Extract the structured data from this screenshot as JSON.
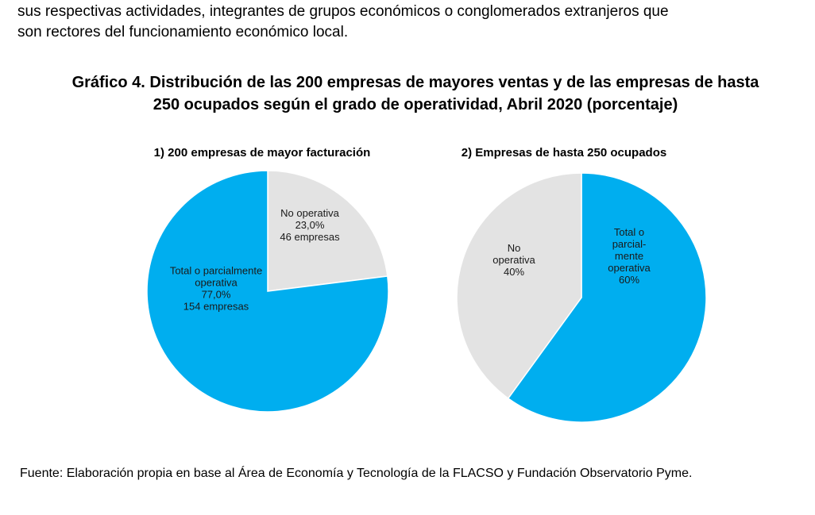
{
  "document": {
    "intro_lines": [
      "sus respectivas actividades, integrantes de grupos económicos o conglomerados extranjeros que",
      "son rectores del funcionamiento económico local."
    ],
    "figure_title_lines": [
      "Gráfico 4. Distribución de las 200 empresas de mayores ventas y de las empresas de hasta",
      "250 ocupados según el grado de operatividad, Abril 2020 (porcentaje)"
    ],
    "source": "Fuente: Elaboración propia en base al Área de Economía y Tecnología de la FLACSO y Fundación Observatorio Pyme."
  },
  "colors": {
    "operativa": "#00AEEF",
    "no_operativa": "#E3E3E3",
    "edge": "#ffffff"
  },
  "chart_data": [
    {
      "type": "pie",
      "title": "1) 200 empresas de mayor facturación",
      "slices": [
        {
          "label": "No operativa",
          "value": 23.0,
          "count": 46,
          "color": "#E3E3E3",
          "text_lines": [
            "No operativa",
            "23,0%",
            "46 empresas"
          ]
        },
        {
          "label": "Total o parcialmente operativa",
          "value": 77.0,
          "count": 154,
          "color": "#00AEEF",
          "text_lines": [
            "Total  o parcialmente",
            "operativa",
            "77,0%",
            "154 empresas"
          ]
        }
      ]
    },
    {
      "type": "pie",
      "title": "2) Empresas de hasta 250 ocupados",
      "slices": [
        {
          "label": "Total o parcialmente operativa",
          "value": 60,
          "color": "#00AEEF",
          "text_lines": [
            "Total  o",
            "parcial-",
            "mente",
            "operativa",
            "60%"
          ]
        },
        {
          "label": "No operativa",
          "value": 40,
          "color": "#E3E3E3",
          "text_lines": [
            "No",
            "operativa",
            "40%"
          ]
        }
      ]
    }
  ]
}
